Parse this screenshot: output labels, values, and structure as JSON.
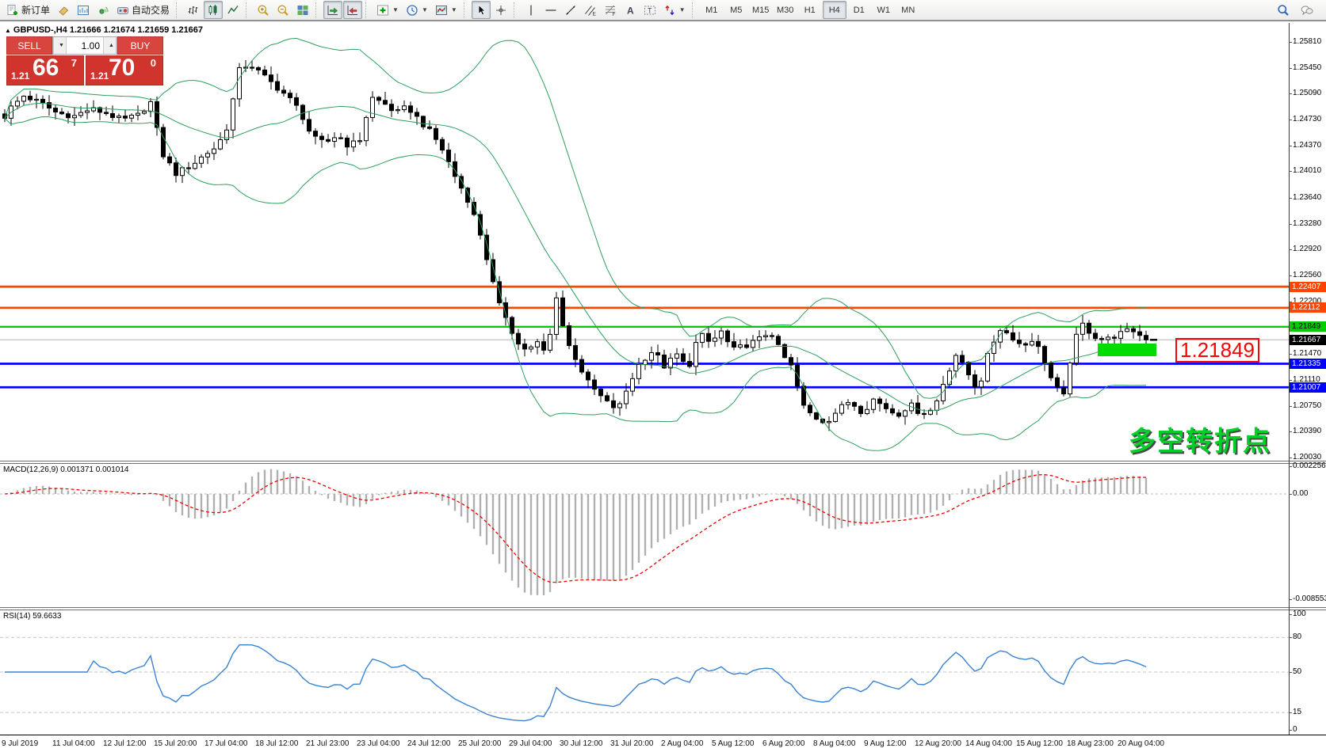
{
  "toolbar": {
    "groups": [
      {
        "items": [
          {
            "name": "new-order",
            "icon": "new-order",
            "label": "新订单"
          },
          {
            "name": "eraser",
            "icon": "eraser"
          },
          {
            "name": "chart-window",
            "icon": "chart-window"
          },
          {
            "name": "signals",
            "icon": "signal"
          },
          {
            "name": "autotrading",
            "icon": "autotrading",
            "label": "自动交易"
          }
        ]
      },
      {
        "items": [
          {
            "name": "bar-chart",
            "icon": "bar-chart"
          },
          {
            "name": "candlestick-chart",
            "icon": "candlestick",
            "active": true
          },
          {
            "name": "line-chart",
            "icon": "line-chart"
          }
        ]
      },
      {
        "items": [
          {
            "name": "zoom-in",
            "icon": "zoom-in"
          },
          {
            "name": "zoom-out",
            "icon": "zoom-out"
          },
          {
            "name": "tile-windows",
            "icon": "tile-windows"
          }
        ]
      },
      {
        "items": [
          {
            "name": "auto-scroll",
            "icon": "auto-scroll",
            "active": true
          },
          {
            "name": "chart-shift",
            "icon": "chart-shift",
            "active": true
          }
        ]
      },
      {
        "items": [
          {
            "name": "indicators",
            "icon": "indicators",
            "dropdown": true
          },
          {
            "name": "periods",
            "icon": "period",
            "dropdown": true
          },
          {
            "name": "templates",
            "icon": "template",
            "dropdown": true
          }
        ]
      },
      {
        "items": [
          {
            "name": "cursor",
            "icon": "cursor",
            "active": true
          },
          {
            "name": "crosshair",
            "icon": "crosshair"
          }
        ]
      },
      {
        "items": [
          {
            "name": "vertical-line",
            "icon": "vline"
          },
          {
            "name": "horizontal-line",
            "icon": "hline"
          },
          {
            "name": "trendline",
            "icon": "trendline"
          },
          {
            "name": "equidistant-channel",
            "icon": "channel"
          },
          {
            "name": "fibonacci",
            "icon": "fibonacci"
          },
          {
            "name": "text",
            "icon": "text"
          },
          {
            "name": "text-label",
            "icon": "text-label"
          },
          {
            "name": "arrows",
            "icon": "arrows",
            "dropdown": true
          }
        ]
      }
    ],
    "timeframes": {
      "items": [
        "M1",
        "M5",
        "M15",
        "M30",
        "H1",
        "H4",
        "D1",
        "W1",
        "MN"
      ],
      "active": "H4"
    },
    "right": [
      {
        "name": "search",
        "icon": "search"
      },
      {
        "name": "chat",
        "icon": "chat"
      }
    ]
  },
  "chart": {
    "collapse_marker": "▲",
    "title": "GBPUSD-,H4 1.21666 1.21674 1.21659 1.21667"
  },
  "one_click": {
    "sell_label": "SELL",
    "buy_label": "BUY",
    "volume": "1.00",
    "sell_price": {
      "small": "1.21",
      "big": "66",
      "sup": "7"
    },
    "buy_price": {
      "small": "1.21",
      "big": "70",
      "sup": "0"
    }
  },
  "annotations": {
    "price_box": "1.21849",
    "turning_point": "多空转折点"
  },
  "indicators": {
    "macd_label": "MACD(12,26,9) 0.001371 0.001014",
    "rsi_label": "RSI(14) 59.6633"
  },
  "axes": {
    "price_ticks": [
      "1.25810",
      "1.25450",
      "1.25090",
      "1.24730",
      "1.24370",
      "1.24010",
      "1.23640",
      "1.23280",
      "1.22920",
      "1.22560",
      "1.22200",
      "1.21470",
      "1.21110",
      "1.20750",
      "1.20390",
      "1.20030"
    ],
    "macd_ticks": [
      {
        "t": "0.002256",
        "v": 0.002256
      },
      {
        "t": "0.00",
        "v": 0
      },
      {
        "t": "-0.008553",
        "v": -0.008553
      }
    ],
    "rsi_ticks": [
      {
        "t": "100",
        "v": 100
      },
      {
        "t": "80",
        "v": 80
      },
      {
        "t": "50",
        "v": 50
      },
      {
        "t": "15",
        "v": 15
      },
      {
        "t": "0",
        "v": 0
      }
    ],
    "dates": [
      "9 Jul 2019",
      "11 Jul 04:00",
      "12 Jul 12:00",
      "15 Jul 20:00",
      "17 Jul 04:00",
      "18 Jul 12:00",
      "21 Jul 23:00",
      "23 Jul 04:00",
      "24 Jul 12:00",
      "25 Jul 20:00",
      "29 Jul 04:00",
      "30 Jul 12:00",
      "31 Jul 20:00",
      "2 Aug 04:00",
      "5 Aug 12:00",
      "6 Aug 20:00",
      "8 Aug 04:00",
      "9 Aug 12:00",
      "12 Aug 20:00",
      "14 Aug 04:00",
      "15 Aug 12:00",
      "18 Aug 23:00",
      "20 Aug 04:00"
    ]
  },
  "chart_data": {
    "type": "candlestick",
    "symbol": "GBPUSD-",
    "timeframe": "H4",
    "current_bar": {
      "open": 1.21666,
      "high": 1.21674,
      "low": 1.21659,
      "close": 1.21667
    },
    "y_range": [
      1.2003,
      1.2581
    ],
    "price_path": [
      [
        0,
        1.2468
      ],
      [
        14,
        1.249
      ],
      [
        30,
        1.2506
      ],
      [
        52,
        1.2496
      ],
      [
        72,
        1.2482
      ],
      [
        94,
        1.2478
      ],
      [
        114,
        1.2488
      ],
      [
        134,
        1.2482
      ],
      [
        154,
        1.2472
      ],
      [
        174,
        1.2479
      ],
      [
        190,
        1.2497
      ],
      [
        205,
        1.2425
      ],
      [
        222,
        1.2398
      ],
      [
        242,
        1.241
      ],
      [
        258,
        1.2424
      ],
      [
        274,
        1.2436
      ],
      [
        289,
        1.2468
      ],
      [
        300,
        1.254
      ],
      [
        314,
        1.2551
      ],
      [
        330,
        1.2536
      ],
      [
        346,
        1.2521
      ],
      [
        362,
        1.2506
      ],
      [
        378,
        1.2486
      ],
      [
        394,
        1.2448
      ],
      [
        410,
        1.244
      ],
      [
        426,
        1.2452
      ],
      [
        440,
        1.2436
      ],
      [
        455,
        1.2446
      ],
      [
        468,
        1.2504
      ],
      [
        484,
        1.2496
      ],
      [
        500,
        1.2482
      ],
      [
        514,
        1.2491
      ],
      [
        530,
        1.2471
      ],
      [
        546,
        1.2452
      ],
      [
        560,
        1.2428
      ],
      [
        575,
        1.2392
      ],
      [
        590,
        1.2362
      ],
      [
        604,
        1.2322
      ],
      [
        616,
        1.2272
      ],
      [
        628,
        1.2218
      ],
      [
        640,
        1.2196
      ],
      [
        652,
        1.2162
      ],
      [
        666,
        1.2152
      ],
      [
        678,
        1.2162
      ],
      [
        690,
        1.2146
      ],
      [
        702,
        1.2228
      ],
      [
        714,
        1.2166
      ],
      [
        726,
        1.2142
      ],
      [
        740,
        1.211
      ],
      [
        754,
        1.2092
      ],
      [
        768,
        1.2077
      ],
      [
        780,
        1.207
      ],
      [
        794,
        1.2106
      ],
      [
        808,
        1.2136
      ],
      [
        824,
        1.2152
      ],
      [
        838,
        1.213
      ],
      [
        854,
        1.2146
      ],
      [
        868,
        1.2126
      ],
      [
        882,
        1.2176
      ],
      [
        896,
        1.2162
      ],
      [
        910,
        1.2178
      ],
      [
        924,
        1.2152
      ],
      [
        940,
        1.2159
      ],
      [
        956,
        1.2166
      ],
      [
        972,
        1.2179
      ],
      [
        986,
        1.2147
      ],
      [
        1000,
        1.2127
      ],
      [
        1012,
        1.2076
      ],
      [
        1026,
        1.206
      ],
      [
        1042,
        1.2052
      ],
      [
        1058,
        1.207
      ],
      [
        1072,
        1.2082
      ],
      [
        1088,
        1.2066
      ],
      [
        1102,
        1.2084
      ],
      [
        1118,
        1.2072
      ],
      [
        1132,
        1.2062
      ],
      [
        1148,
        1.2077
      ],
      [
        1162,
        1.2064
      ],
      [
        1178,
        1.207
      ],
      [
        1192,
        1.2112
      ],
      [
        1206,
        1.2146
      ],
      [
        1220,
        1.2122
      ],
      [
        1234,
        1.2096
      ],
      [
        1248,
        1.2152
      ],
      [
        1262,
        1.2182
      ],
      [
        1276,
        1.2172
      ],
      [
        1290,
        1.2157
      ],
      [
        1304,
        1.2169
      ],
      [
        1318,
        1.2137
      ],
      [
        1330,
        1.2102
      ],
      [
        1342,
        1.2088
      ],
      [
        1354,
        1.2162
      ],
      [
        1366,
        1.2188
      ],
      [
        1380,
        1.2172
      ],
      [
        1394,
        1.2166
      ],
      [
        1410,
        1.2174
      ],
      [
        1428,
        1.2181
      ],
      [
        1446,
        1.21667
      ]
    ],
    "levels": [
      {
        "value": 1.22407,
        "label": "1.22407",
        "color": "#ff4500",
        "text": "#ffffff"
      },
      {
        "value": 1.22112,
        "label": "1.22112",
        "color": "#ff4500",
        "text": "#ffffff"
      },
      {
        "value": 1.21849,
        "label": "1.21849",
        "color": "#00cc00",
        "text": "#000000"
      },
      {
        "value": 1.21335,
        "label": "1.21335",
        "color": "#0000ff",
        "text": "#ffffff"
      },
      {
        "value": 1.21007,
        "label": "1.21007",
        "color": "#0000ff",
        "text": "#ffffff"
      }
    ],
    "current_price": {
      "value": 1.21667,
      "label": "1.21667",
      "color": "#000000",
      "text": "#ffffff"
    },
    "indicators": {
      "bollinger": {
        "period": 20,
        "deviation": 2,
        "color": "#2e9e5b"
      },
      "macd": {
        "fast": 12,
        "slow": 26,
        "signal": 9,
        "values": [
          0.001371,
          0.001014
        ],
        "range": [
          -0.008553,
          0.002256
        ],
        "hist_color": "#b0b0b0",
        "signal_color": "#ee0000"
      },
      "rsi": {
        "period": 14,
        "value": 59.6633,
        "levels": [
          15,
          50,
          80
        ],
        "range": [
          0,
          100
        ],
        "color": "#3b82d0"
      }
    }
  },
  "colors": {
    "candle_up": "#ffffff",
    "candle_down": "#000000",
    "panel_red": "#d0342c",
    "highlight_green": "#00dc00",
    "annotation_green": "#00cf28",
    "price_box_red": "#ff0000"
  }
}
